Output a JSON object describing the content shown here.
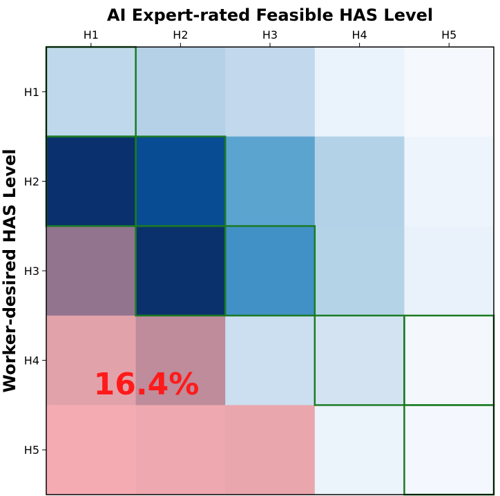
{
  "chart_data": {
    "type": "heatmap",
    "title": "AI Expert-rated Feasible HAS Level",
    "xlabel": "AI Expert-rated Feasible HAS Level",
    "ylabel": "Worker-desired HAS Level",
    "x_categories": [
      "H1",
      "H2",
      "H3",
      "H4",
      "H5"
    ],
    "y_categories": [
      "H1",
      "H2",
      "H3",
      "H4",
      "H5"
    ],
    "cell_colors": [
      [
        "#c0d8ec",
        "#b5d1e7",
        "#c2d8ec",
        "#eaf2fb",
        "#f5f9fe"
      ],
      [
        "#0a316e",
        "#084c93",
        "#5ca4d0",
        "#b4d2e7",
        "#edf4fb"
      ],
      [
        "#93748f",
        "#0b316d",
        "#4191c6",
        "#b5d3e7",
        "#e9f1fa"
      ],
      [
        "#e2a2aa",
        "#be8c9b",
        "#cbdff0",
        "#d3e3f2",
        "#f4f8fd"
      ],
      [
        "#f4acb2",
        "#eea8af",
        "#eaa6ad",
        "#ebf3fb",
        "#f4f8fe"
      ]
    ],
    "highlight_cells": [
      [
        0,
        0
      ],
      [
        1,
        0
      ],
      [
        1,
        1
      ],
      [
        2,
        1
      ],
      [
        2,
        2
      ],
      [
        3,
        3
      ],
      [
        3,
        4
      ],
      [
        4,
        4
      ]
    ],
    "highlight_color": "#1b7b22",
    "annotation": {
      "text": "16.4%",
      "color": "#ff1a1a"
    },
    "x_ticks_position": "top",
    "grid": false
  }
}
